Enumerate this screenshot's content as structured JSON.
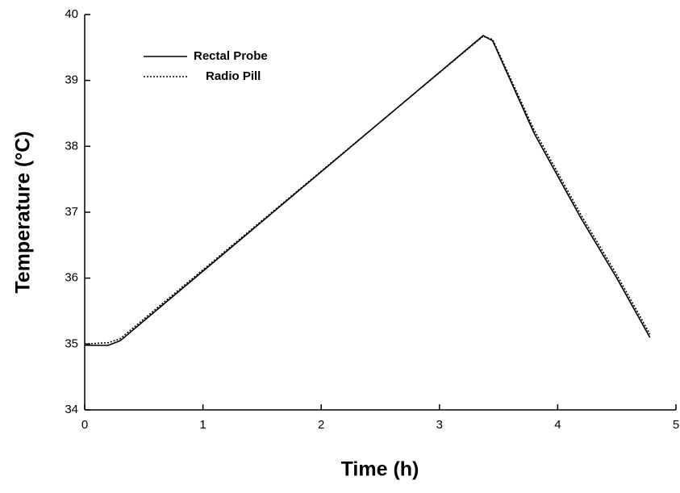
{
  "chart_data": {
    "type": "line",
    "x_label": "Time (h)",
    "y_label": "Temperature (°C)",
    "xlim": [
      0,
      5
    ],
    "xticks": [
      0,
      1,
      2,
      3,
      4,
      5
    ],
    "ylim": [
      34,
      40
    ],
    "yticks": [
      34,
      35,
      36,
      37,
      38,
      39,
      40
    ],
    "x": [
      0,
      0.2,
      0.3,
      3.37,
      3.45,
      3.8,
      4.2,
      4.5,
      4.78
    ],
    "series": [
      {
        "name": "Rectal Probe",
        "color": "#000000",
        "dash": "solid",
        "values": [
          34.98,
          34.98,
          35.05,
          39.68,
          39.6,
          38.2,
          36.9,
          36.0,
          35.1
        ]
      },
      {
        "name": "Radio Pill",
        "color": "#000000",
        "dash": "dotted",
        "values": [
          35.0,
          35.02,
          35.08,
          39.67,
          39.62,
          38.25,
          36.95,
          36.05,
          35.15
        ]
      }
    ]
  }
}
